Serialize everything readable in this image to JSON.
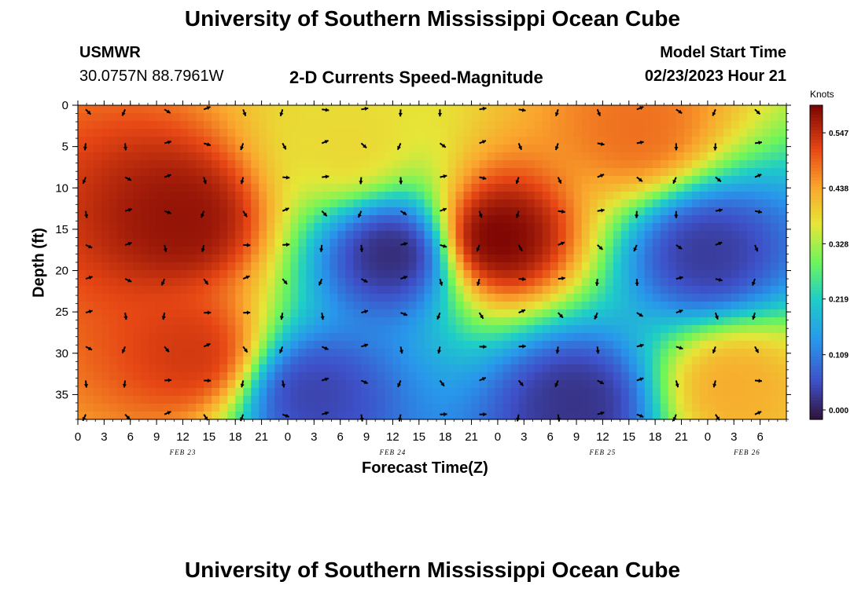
{
  "title": "University of Southern Mississippi Ocean Cube",
  "footer_title": "University of Southern Mississippi Ocean Cube",
  "station": {
    "name": "USMWR",
    "coords": "30.0757N  88.7961W"
  },
  "chart_title": "2-D Currents Speed-Magnitude",
  "model": {
    "label": "Model Start Time",
    "value": "02/23/2023 Hour 21"
  },
  "chart_data": {
    "type": "heatmap",
    "title": "2-D Currents Speed-Magnitude",
    "xlabel": "Forecast Time(Z)",
    "ylabel": "Depth (ft)",
    "x_range": [
      0,
      81
    ],
    "y_range": [
      0,
      38
    ],
    "x_ticks": [
      "0",
      "3",
      "6",
      "9",
      "12",
      "15",
      "18",
      "21",
      "0",
      "3",
      "6",
      "9",
      "12",
      "15",
      "18",
      "21",
      "0",
      "3",
      "6",
      "9",
      "12",
      "15",
      "18",
      "21",
      "0",
      "3",
      "6"
    ],
    "y_ticks": [
      "0",
      "5",
      "10",
      "15",
      "20",
      "25",
      "30",
      "35"
    ],
    "date_labels": [
      {
        "text": "FEB 23",
        "hour": 12
      },
      {
        "text": "FEB 24",
        "hour": 36
      },
      {
        "text": "FEB 25",
        "hour": 60
      },
      {
        "text": "FEB 26",
        "hour": 76.5
      }
    ],
    "colorbar": {
      "unit": "Knots",
      "min": 0.0,
      "max": 0.62,
      "ticks": [
        "0.000",
        "0.109",
        "0.219",
        "0.328",
        "0.438",
        "0.547"
      ]
    },
    "speed_hotspots_knots": [
      {
        "hour": 12,
        "depth": 14,
        "speed": 0.6
      },
      {
        "hour": 13,
        "depth": 30,
        "speed": 0.55
      },
      {
        "hour": 31,
        "depth": 5,
        "speed": 0.4
      },
      {
        "hour": 36,
        "depth": 18,
        "speed": 0.03
      },
      {
        "hour": 48,
        "depth": 16,
        "speed": 0.62
      },
      {
        "hour": 64,
        "depth": 3,
        "speed": 0.5
      },
      {
        "hour": 72,
        "depth": 18,
        "speed": 0.05
      },
      {
        "hour": 75,
        "depth": 34,
        "speed": 0.45
      },
      {
        "hour": 27,
        "depth": 35,
        "speed": 0.06
      },
      {
        "hour": 57,
        "depth": 36,
        "speed": 0.04
      }
    ]
  }
}
